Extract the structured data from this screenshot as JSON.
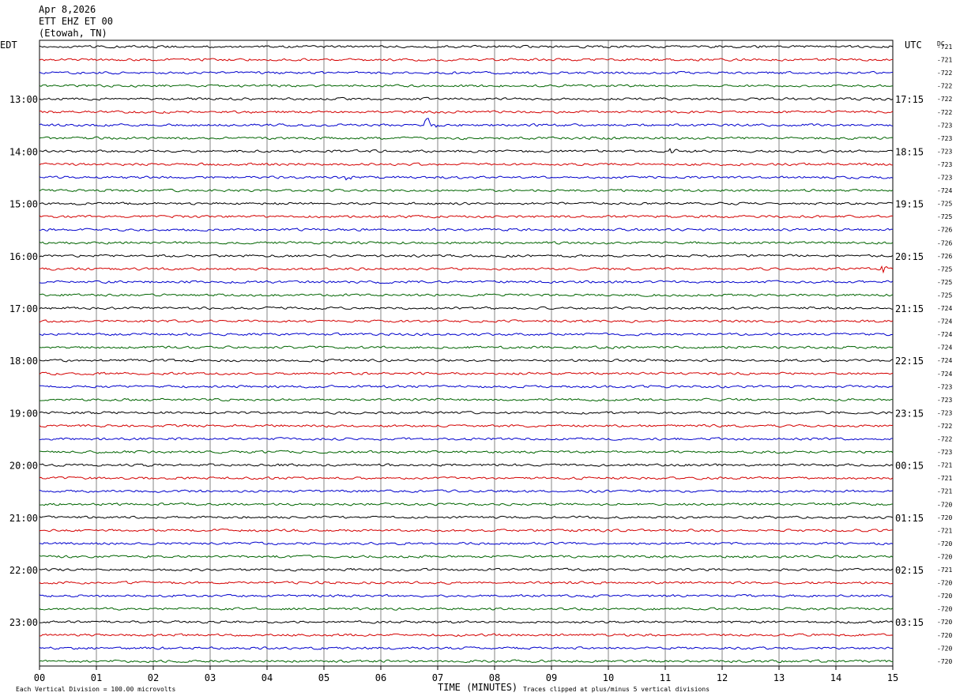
{
  "header": {
    "date": "Apr 8,2026",
    "station": "ETT EHZ ET 00",
    "location": "(Etowah, TN)"
  },
  "labels": {
    "left_timezone": "EDT",
    "right_timezone": "UTC",
    "dc_header": "DC",
    "xlabel": "TIME (MINUTES)",
    "scale_note": "Each Vertical Division =  100.00 microvolts",
    "clip_note": "Traces clipped at plus/minus 5 vertical divisions"
  },
  "colors": {
    "cycle": [
      "#000000",
      "#d40000",
      "#0000cc",
      "#006400"
    ],
    "grid": "#000000"
  },
  "chart_data": {
    "type": "line",
    "description": "helicorder seismogram, 15-minute lines, 48 traces",
    "xlim": [
      0,
      15
    ],
    "x_ticks": [
      "00",
      "01",
      "02",
      "03",
      "04",
      "05",
      "06",
      "07",
      "08",
      "09",
      "10",
      "11",
      "12",
      "13",
      "14",
      "15"
    ],
    "edt_hour_labels": [
      {
        "row": 4,
        "label": "13:00"
      },
      {
        "row": 8,
        "label": "14:00"
      },
      {
        "row": 12,
        "label": "15:00"
      },
      {
        "row": 16,
        "label": "16:00"
      },
      {
        "row": 20,
        "label": "17:00"
      },
      {
        "row": 24,
        "label": "18:00"
      },
      {
        "row": 28,
        "label": "19:00"
      },
      {
        "row": 32,
        "label": "20:00"
      },
      {
        "row": 36,
        "label": "21:00"
      },
      {
        "row": 40,
        "label": "22:00"
      },
      {
        "row": 44,
        "label": "23:00"
      }
    ],
    "utc_hour_labels": [
      {
        "row": 4,
        "label": "17:15"
      },
      {
        "row": 8,
        "label": "18:15"
      },
      {
        "row": 12,
        "label": "19:15"
      },
      {
        "row": 16,
        "label": "20:15"
      },
      {
        "row": 20,
        "label": "21:15"
      },
      {
        "row": 24,
        "label": "22:15"
      },
      {
        "row": 28,
        "label": "23:15"
      },
      {
        "row": 32,
        "label": "00:15"
      },
      {
        "row": 36,
        "label": "01:15"
      },
      {
        "row": 40,
        "label": "02:15"
      },
      {
        "row": 44,
        "label": "03:15"
      }
    ],
    "dc_offsets": [
      "-721",
      "-721",
      "-722",
      "-722",
      "-722",
      "-722",
      "-723",
      "-723",
      "-723",
      "-723",
      "-723",
      "-724",
      "-725",
      "-725",
      "-726",
      "-726",
      "-726",
      "-725",
      "-725",
      "-725",
      "-724",
      "-724",
      "-724",
      "-724",
      "-724",
      "-724",
      "-723",
      "-723",
      "-723",
      "-722",
      "-722",
      "-723",
      "-721",
      "-721",
      "-721",
      "-720",
      "-720",
      "-721",
      "-720",
      "-720",
      "-721",
      "-720",
      "-720",
      "-720",
      "-720",
      "-720",
      "-720",
      "-720"
    ],
    "events": [
      {
        "row": 6,
        "minute": 6.8,
        "amplitude": 3.0
      },
      {
        "row": 8,
        "minute": 11.1,
        "amplitude": 1.3
      },
      {
        "row": 17,
        "minute": 14.8,
        "amplitude": 1.2
      },
      {
        "row": 10,
        "minute": 5.4,
        "amplitude": 0.8
      }
    ]
  }
}
